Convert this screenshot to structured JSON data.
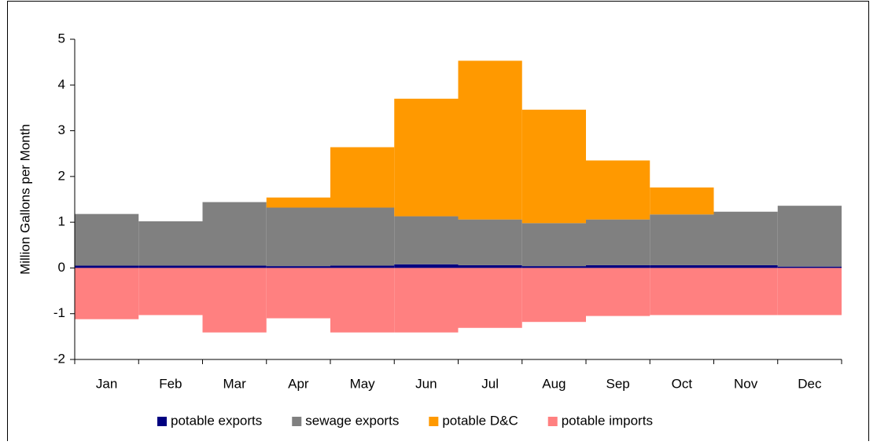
{
  "chart_data": {
    "type": "stacked-bar",
    "y_label": "Million Gallons per Month",
    "categories": [
      "Jan",
      "Feb",
      "Mar",
      "Apr",
      "May",
      "Jun",
      "Jul",
      "Aug",
      "Sep",
      "Oct",
      "Nov",
      "Dec"
    ],
    "series": [
      {
        "name": "potable exports",
        "color": "#000080",
        "values": [
          0.05,
          0.05,
          0.05,
          0.04,
          0.05,
          0.08,
          0.06,
          0.04,
          0.06,
          0.06,
          0.06,
          0.03
        ]
      },
      {
        "name": "sewage exports",
        "color": "#808080",
        "values": [
          1.13,
          0.97,
          1.39,
          1.28,
          1.27,
          1.05,
          1.0,
          0.94,
          1.0,
          1.11,
          1.17,
          1.33
        ]
      },
      {
        "name": "potable D&C",
        "color": "#FF9900",
        "values": [
          0,
          0,
          0,
          0.22,
          1.32,
          2.57,
          3.47,
          2.48,
          1.29,
          0.59,
          0,
          0
        ]
      },
      {
        "name": "potable imports",
        "color": "#FF8080",
        "values": [
          -1.12,
          -1.03,
          -1.41,
          -1.1,
          -1.41,
          -1.41,
          -1.31,
          -1.18,
          -1.05,
          -1.03,
          -1.03,
          -1.03
        ]
      }
    ],
    "ylim": [
      -2,
      5
    ],
    "yticks": [
      -2,
      -1,
      0,
      1,
      2,
      3,
      4,
      5
    ],
    "legend": "bottom"
  }
}
